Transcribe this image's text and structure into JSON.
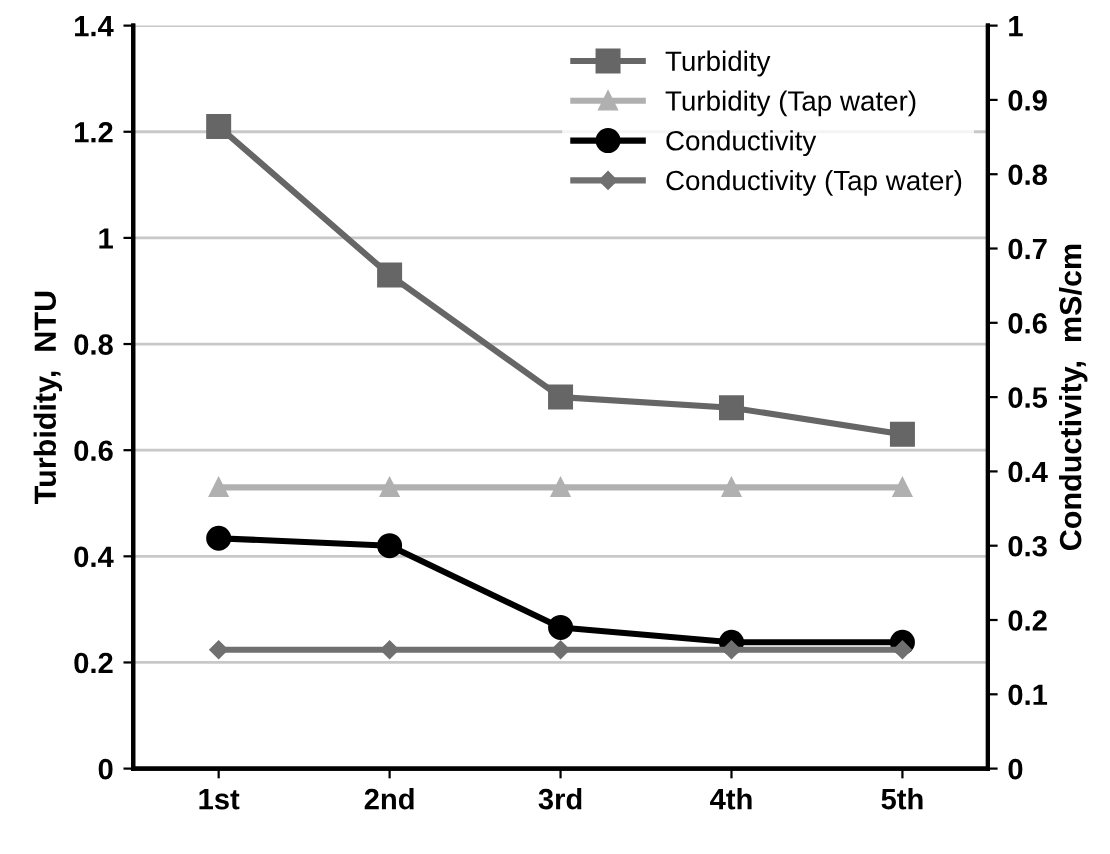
{
  "chart_data": {
    "type": "line",
    "categories": [
      "1st",
      "2nd",
      "3rd",
      "4th",
      "5th"
    ],
    "ylabel": "Turbidity,  NTU",
    "y2label": "Conductivity,  mS/cm",
    "ylim": [
      0,
      1.4
    ],
    "yticks": [
      0,
      0.2,
      0.4,
      0.6,
      0.8,
      1,
      1.2,
      1.4
    ],
    "y2lim": [
      0,
      1
    ],
    "y2ticks": [
      0,
      0.1,
      0.2,
      0.3,
      0.4,
      0.5,
      0.6,
      0.7,
      0.8,
      0.9,
      1
    ],
    "grid": "y",
    "legend": "top right",
    "series": [
      {
        "name": "Turbidity",
        "color": "#666666",
        "marker": "square",
        "values": [
          1.21,
          0.93,
          0.7,
          0.68,
          0.63
        ]
      },
      {
        "name": "Turbidity (Tap water)",
        "color": "#b0b0b0",
        "marker": "triangle",
        "values": [
          0.53,
          0.53,
          0.53,
          0.53,
          0.53
        ]
      },
      {
        "name": "Conductivity",
        "color": "#000000",
        "marker": "circle",
        "axis": "y2",
        "values": [
          0.31,
          0.3,
          0.19,
          0.17,
          0.17
        ]
      },
      {
        "name": "Conductivity (Tap water)",
        "color": "#707070",
        "marker": "diamond",
        "axis": "y2",
        "values": [
          0.16,
          0.16,
          0.16,
          0.16,
          0.16
        ]
      }
    ]
  }
}
